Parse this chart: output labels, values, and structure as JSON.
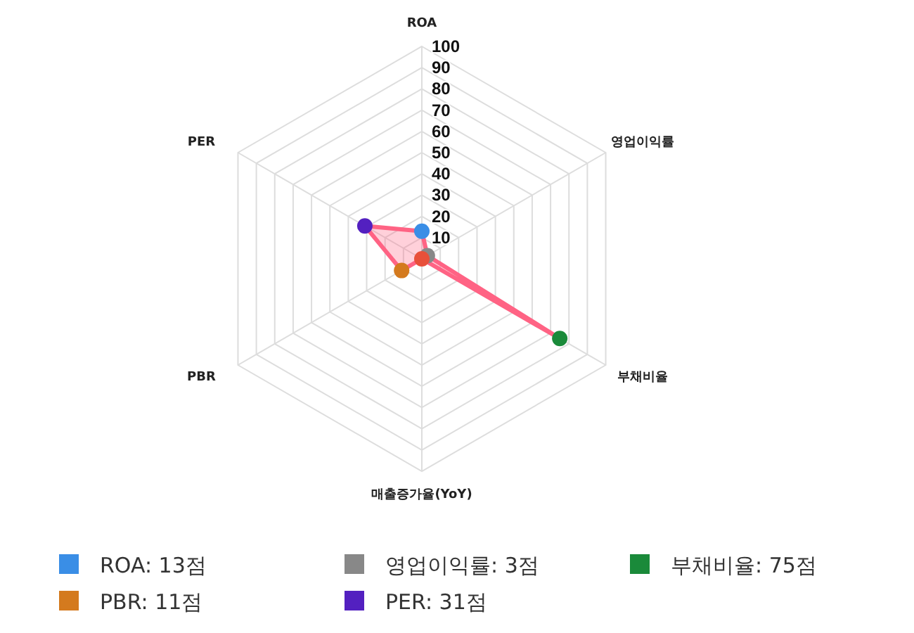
{
  "chart_data": {
    "type": "radar",
    "categories": [
      "ROA",
      "영업이익률",
      "부채비율",
      "매출증가율(YoY)",
      "PBR",
      "PER"
    ],
    "series": [
      {
        "color": "#ff6384",
        "values": [
          13,
          3,
          75,
          0,
          11,
          31
        ]
      }
    ],
    "colors": [
      "#3a8ee6",
      "#888888",
      "#1a8a3a",
      "#e8503a",
      "#d47a1e",
      "#5320c0"
    ],
    "ylim": [
      0,
      100
    ],
    "yticks": [
      10,
      20,
      30,
      40,
      50,
      60,
      70,
      80,
      90,
      100
    ],
    "grid": true,
    "marker": "circle",
    "annotations": [
      "ROA: 13점",
      "영업이익률: 3점",
      "부채비율: 75점",
      "PBR: 11점",
      "PER: 31점"
    ]
  }
}
